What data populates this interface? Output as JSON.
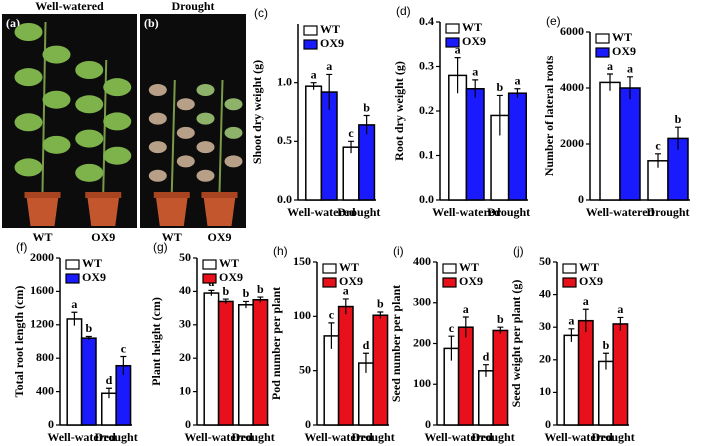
{
  "photos": [
    {
      "panel": "(a)",
      "title": "Well-watered",
      "plants": [
        "WT",
        "OX9"
      ]
    },
    {
      "panel": "(b)",
      "title": "Drought",
      "plants": [
        "WT",
        "OX9"
      ]
    }
  ],
  "chart_data": [
    {
      "type": "bar",
      "panel": "(c)",
      "ylabel": "Shoot dry weight (g)",
      "categories": [
        "Well-watered",
        "Drought"
      ],
      "ylim": [
        0,
        1.5
      ],
      "yticks": [
        {
          "value": 0,
          "label": "0.0"
        },
        0.5,
        {
          "value": 1,
          "label": "1.0"
        }
      ],
      "series": [
        {
          "name": "WT",
          "color": "#ffffff",
          "values": [
            0.97,
            0.45
          ],
          "errors": [
            0.03,
            0.05
          ],
          "letters": [
            "a",
            "c"
          ]
        },
        {
          "name": "OX9",
          "color": "#1a1aff",
          "values": [
            0.92,
            0.64
          ],
          "errors": [
            0.15,
            0.08
          ],
          "letters": [
            "a",
            "b"
          ]
        }
      ]
    },
    {
      "type": "bar",
      "panel": "(d)",
      "ylabel": "Root dry weight (g)",
      "categories": [
        "Well-watered",
        "Drought"
      ],
      "ylim": [
        0,
        0.4
      ],
      "yticks": [
        {
          "value": 0,
          "label": "0.0"
        },
        0.1,
        0.2,
        0.3,
        0.4
      ],
      "series": [
        {
          "name": "WT",
          "color": "#ffffff",
          "values": [
            0.28,
            0.19
          ],
          "errors": [
            0.04,
            0.045
          ],
          "letters": [
            "a",
            "b"
          ]
        },
        {
          "name": "OX9",
          "color": "#1a1aff",
          "values": [
            0.25,
            0.24
          ],
          "errors": [
            0.02,
            0.01
          ],
          "letters": [
            "a",
            "a"
          ]
        }
      ]
    },
    {
      "type": "bar",
      "panel": "(e)",
      "ylabel": "Number of lateral roots",
      "categories": [
        "Well-watered",
        "Drought"
      ],
      "ylim": [
        0,
        6000
      ],
      "yticks": [
        0,
        2000,
        4000,
        6000
      ],
      "series": [
        {
          "name": "WT",
          "color": "#ffffff",
          "values": [
            4200,
            1400
          ],
          "errors": [
            300,
            250
          ],
          "letters": [
            "a",
            "c"
          ]
        },
        {
          "name": "OX9",
          "color": "#1a1aff",
          "values": [
            4000,
            2200
          ],
          "errors": [
            400,
            400
          ],
          "letters": [
            "a",
            "b"
          ]
        }
      ]
    },
    {
      "type": "bar",
      "panel": "(f)",
      "ylabel": "Total root length (cm)",
      "categories": [
        "Well-watered",
        "Drought"
      ],
      "ylim": [
        0,
        2000
      ],
      "yticks": [
        0,
        400,
        800,
        1200,
        1600,
        2000
      ],
      "series": [
        {
          "name": "WT",
          "color": "#ffffff",
          "values": [
            1270,
            380
          ],
          "errors": [
            80,
            60
          ],
          "letters": [
            "a",
            "d"
          ]
        },
        {
          "name": "OX9",
          "color": "#1a1aff",
          "values": [
            1040,
            710
          ],
          "errors": [
            20,
            110
          ],
          "letters": [
            "b",
            "c"
          ]
        }
      ]
    },
    {
      "type": "bar",
      "panel": "(g)",
      "ylabel": "Plant height (cm)",
      "categories": [
        "Well-watered",
        "Drought"
      ],
      "ylim": [
        0,
        50
      ],
      "yticks": [
        0,
        10,
        20,
        30,
        40,
        50
      ],
      "series": [
        {
          "name": "WT",
          "color": "#ffffff",
          "values": [
            39.5,
            36
          ],
          "errors": [
            0.8,
            1
          ],
          "letters": [
            "a",
            "b"
          ]
        },
        {
          "name": "OX9",
          "color": "#e8101a",
          "values": [
            37,
            37.5
          ],
          "errors": [
            0.7,
            0.8
          ],
          "letters": [
            "b",
            "b"
          ]
        }
      ]
    },
    {
      "type": "bar",
      "panel": "(h)",
      "ylabel": "Pod number per plant",
      "categories": [
        "Well-watered",
        "Drought"
      ],
      "ylim": [
        0,
        150
      ],
      "yticks": [
        0,
        50,
        100,
        150
      ],
      "series": [
        {
          "name": "WT",
          "color": "#ffffff",
          "values": [
            82,
            57
          ],
          "errors": [
            12,
            9
          ],
          "letters": [
            "c",
            "d"
          ]
        },
        {
          "name": "OX9",
          "color": "#e8101a",
          "values": [
            109,
            101
          ],
          "errors": [
            7,
            3
          ],
          "letters": [
            "a",
            "b"
          ]
        }
      ]
    },
    {
      "type": "bar",
      "panel": "(i)",
      "ylabel": "Seed number per plant",
      "categories": [
        "Well-watered",
        "Drought"
      ],
      "ylim": [
        0,
        400
      ],
      "yticks": [
        0,
        100,
        200,
        300,
        400
      ],
      "series": [
        {
          "name": "WT",
          "color": "#ffffff",
          "values": [
            188,
            133
          ],
          "errors": [
            30,
            15
          ],
          "letters": [
            "c",
            "d"
          ]
        },
        {
          "name": "OX9",
          "color": "#e8101a",
          "values": [
            240,
            232
          ],
          "errors": [
            25,
            8
          ],
          "letters": [
            "a",
            "b"
          ]
        }
      ]
    },
    {
      "type": "bar",
      "panel": "(j)",
      "ylabel": "Seed weight per plant (g)",
      "categories": [
        "Well-watered",
        "Drought"
      ],
      "ylim": [
        0,
        50
      ],
      "yticks": [
        0,
        10,
        20,
        30,
        40,
        50
      ],
      "series": [
        {
          "name": "WT",
          "color": "#ffffff",
          "values": [
            27.5,
            19.5
          ],
          "errors": [
            2,
            2.5
          ],
          "letters": [
            "a",
            "b"
          ]
        },
        {
          "name": "OX9",
          "color": "#e8101a",
          "values": [
            32,
            31
          ],
          "errors": [
            3.5,
            2
          ],
          "letters": [
            "a",
            "a"
          ]
        }
      ]
    }
  ]
}
